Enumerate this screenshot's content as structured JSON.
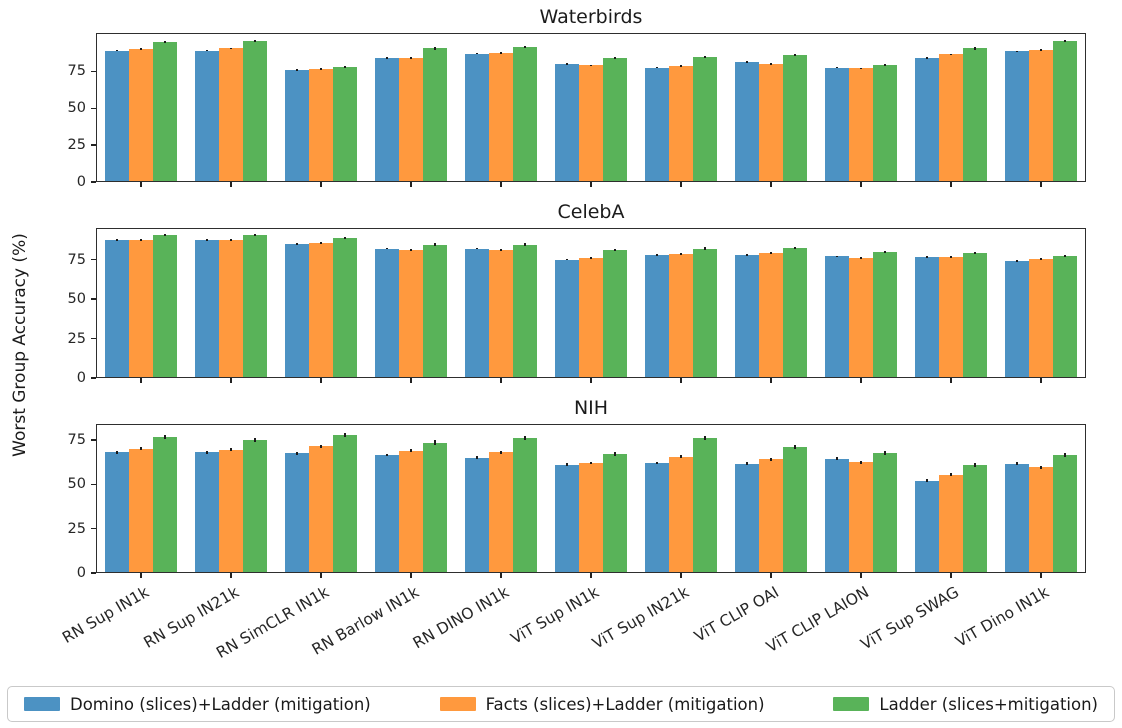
{
  "figure": {
    "ylabel": "Worst Group Accuracy (%)",
    "background": "#ffffff",
    "legend_position": "bottom",
    "accent_colors": {
      "domino": "#4C92C3",
      "facts": "#FF993E",
      "ladder": "#59B359"
    }
  },
  "chart_data": [
    {
      "type": "bar",
      "title": "Waterbirds",
      "categories": [
        "RN Sup IN1k",
        "RN Sup IN21k",
        "RN SimCLR IN1k",
        "RN Barlow IN1k",
        "RN DINO IN1k",
        "ViT Sup IN1k",
        "ViT Sup IN21k",
        "ViT CLIP OAI",
        "ViT CLIP LAION",
        "ViT Sup SWAG",
        "ViT Dino IN1k"
      ],
      "series": [
        {
          "name": "Domino (slices)+Ladder (mitigation)",
          "color": "#4C92C3",
          "err": 0.5,
          "values": [
            89,
            89,
            76,
            84,
            87,
            80,
            77.5,
            81.5,
            77.5,
            84,
            88.5
          ]
        },
        {
          "name": "Facts (slices)+Ladder (mitigation)",
          "color": "#FF993E",
          "err": 0.5,
          "values": [
            90,
            90.5,
            76.5,
            84,
            87.5,
            79,
            78.5,
            80,
            77,
            86.5,
            89.5
          ]
        },
        {
          "name": "Ladder (slices+mitigation)",
          "color": "#59B359",
          "err": 0.7,
          "values": [
            95,
            95.5,
            78,
            90.5,
            91.5,
            84,
            85,
            86,
            79.5,
            90.5,
            95.5
          ]
        }
      ],
      "xlabel": "",
      "ylabel": "Worst Group Accuracy (%)",
      "ylim": [
        0,
        101
      ],
      "yticks": [
        0,
        25,
        50,
        75
      ],
      "grid": false,
      "legend_position": "shared-bottom",
      "show_x_tick_labels": false
    },
    {
      "type": "bar",
      "title": "CelebA",
      "categories": [
        "RN Sup IN1k",
        "RN Sup IN21k",
        "RN SimCLR IN1k",
        "RN Barlow IN1k",
        "RN DINO IN1k",
        "ViT Sup IN1k",
        "ViT Sup IN21k",
        "ViT CLIP OAI",
        "ViT CLIP LAION",
        "ViT Sup SWAG",
        "ViT Dino IN1k"
      ],
      "series": [
        {
          "name": "Domino (slices)+Ladder (mitigation)",
          "color": "#4C92C3",
          "err": 0.5,
          "values": [
            87.5,
            87.5,
            85,
            82,
            82,
            75,
            78,
            78,
            77,
            76.5,
            74
          ]
        },
        {
          "name": "Facts (slices)+Ladder (mitigation)",
          "color": "#FF993E",
          "err": 0.5,
          "values": [
            87.5,
            87.5,
            85.5,
            81,
            81,
            76,
            78.5,
            79,
            76,
            76.5,
            75.5
          ]
        },
        {
          "name": "Ladder (slices+mitigation)",
          "color": "#59B359",
          "err": 0.7,
          "values": [
            90.5,
            90.5,
            88.5,
            84.5,
            84.5,
            81,
            82,
            82.5,
            80,
            79,
            77.5
          ]
        }
      ],
      "xlabel": "",
      "ylabel": "Worst Group Accuracy (%)",
      "ylim": [
        0,
        95
      ],
      "yticks": [
        0,
        25,
        50,
        75
      ],
      "grid": false,
      "legend_position": "shared-bottom",
      "show_x_tick_labels": false
    },
    {
      "type": "bar",
      "title": "NIH",
      "categories": [
        "RN Sup IN1k",
        "RN Sup IN21k",
        "RN SimCLR IN1k",
        "RN Barlow IN1k",
        "RN DINO IN1k",
        "ViT Sup IN1k",
        "ViT Sup IN21k",
        "ViT CLIP OAI",
        "ViT CLIP LAION",
        "ViT Sup SWAG",
        "ViT Dino IN1k"
      ],
      "series": [
        {
          "name": "Domino (slices)+Ladder (mitigation)",
          "color": "#4C92C3",
          "err": 0.8,
          "values": [
            68,
            68,
            67.5,
            66.5,
            65,
            61,
            62,
            61.5,
            64.5,
            52,
            61.5
          ]
        },
        {
          "name": "Facts (slices)+Ladder (mitigation)",
          "color": "#FF993E",
          "err": 0.8,
          "values": [
            70,
            69.5,
            71.5,
            69,
            68,
            62,
            65.5,
            64,
            62.5,
            55.5,
            59.5
          ]
        },
        {
          "name": "Ladder (slices+mitigation)",
          "color": "#59B359",
          "err": 1.2,
          "values": [
            76.5,
            75,
            78,
            73.5,
            76,
            67,
            76,
            71,
            67.5,
            61,
            66.5
          ]
        }
      ],
      "xlabel": "",
      "ylabel": "Worst Group Accuracy (%)",
      "ylim": [
        0,
        84
      ],
      "yticks": [
        0,
        25,
        50,
        75
      ],
      "grid": false,
      "legend_position": "shared-bottom",
      "show_x_tick_labels": true
    }
  ],
  "legend": {
    "entries": [
      {
        "label": "Domino (slices)+Ladder (mitigation)",
        "color": "#4C92C3"
      },
      {
        "label": "Facts (slices)+Ladder (mitigation)",
        "color": "#FF993E"
      },
      {
        "label": "Ladder (slices+mitigation)",
        "color": "#59B359"
      }
    ]
  }
}
